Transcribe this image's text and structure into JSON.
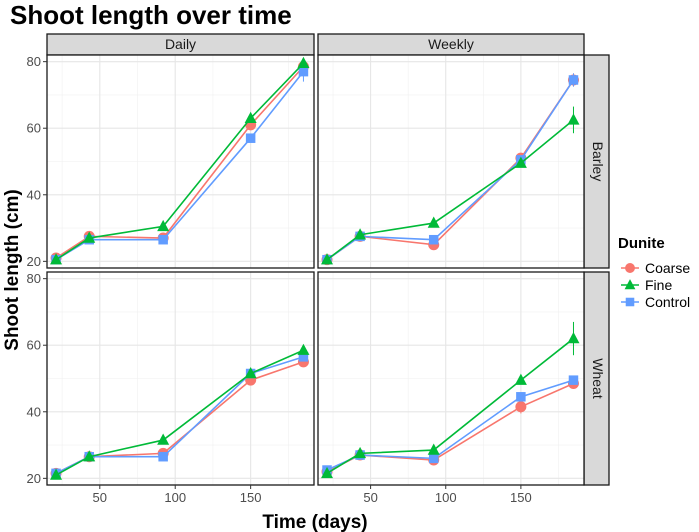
{
  "chart_data": {
    "type": "line",
    "title": "Shoot length over time",
    "xlabel": "Time (days)",
    "ylabel": "Shoot length (cm)",
    "xlim": [
      15,
      192
    ],
    "ylim": [
      18,
      82
    ],
    "x_ticks": [
      50,
      100,
      150
    ],
    "y_ticks": [
      20,
      40,
      60,
      80
    ],
    "x": [
      21,
      43,
      92,
      150,
      185
    ],
    "grid": true,
    "facet_columns": [
      "Daily",
      "Weekly"
    ],
    "facet_rows": [
      "Barley",
      "Wheat"
    ],
    "legend": {
      "title": "Dunite",
      "position": "right",
      "entries": [
        {
          "name": "Coarse",
          "color": "#F8766D",
          "shape": "circle"
        },
        {
          "name": "Fine",
          "color": "#00BA38",
          "shape": "triangle"
        },
        {
          "name": "Control",
          "color": "#619CFF",
          "shape": "square"
        }
      ]
    },
    "panels": [
      {
        "col": "Daily",
        "row": "Barley",
        "series": [
          {
            "name": "Coarse",
            "values": [
              21,
              27.5,
              27,
              61,
              78.5
            ],
            "errors": [
              0.5,
              0.5,
              0.5,
              1,
              1.5
            ]
          },
          {
            "name": "Fine",
            "values": [
              20.5,
              27,
              30.5,
              63,
              79.5
            ],
            "errors": [
              0.5,
              0.5,
              0.5,
              1,
              1
            ]
          },
          {
            "name": "Control",
            "values": [
              20.5,
              26.5,
              26.5,
              57,
              77
            ],
            "errors": [
              0.5,
              0.5,
              0.5,
              0.8,
              3
            ]
          }
        ]
      },
      {
        "col": "Weekly",
        "row": "Barley",
        "series": [
          {
            "name": "Coarse",
            "values": [
              20.5,
              27.5,
              25,
              51,
              74.5
            ],
            "errors": [
              0.5,
              0.5,
              0.5,
              1,
              2
            ]
          },
          {
            "name": "Fine",
            "values": [
              20.5,
              28,
              31.5,
              49.5,
              62.5
            ],
            "errors": [
              0.5,
              0.5,
              0.5,
              1,
              4
            ]
          },
          {
            "name": "Control",
            "values": [
              20.5,
              27.5,
              26.5,
              50.5,
              74.5
            ],
            "errors": [
              0.5,
              0.5,
              0.5,
              1,
              2
            ]
          }
        ]
      },
      {
        "col": "Daily",
        "row": "Wheat",
        "series": [
          {
            "name": "Coarse",
            "values": [
              21.5,
              26.5,
              27.5,
              49.5,
              55
            ],
            "errors": [
              0.5,
              0.5,
              0.5,
              1,
              1
            ]
          },
          {
            "name": "Fine",
            "values": [
              21,
              26.5,
              31.5,
              51.5,
              58.5
            ],
            "errors": [
              0.5,
              0.5,
              0.5,
              1,
              1
            ]
          },
          {
            "name": "Control",
            "values": [
              21.5,
              26.5,
              26.5,
              51.5,
              56.5
            ],
            "errors": [
              0.5,
              0.5,
              0.5,
              1,
              1
            ]
          }
        ]
      },
      {
        "col": "Weekly",
        "row": "Wheat",
        "series": [
          {
            "name": "Coarse",
            "values": [
              22,
              27,
              25.5,
              41.5,
              48.5
            ],
            "errors": [
              0.5,
              0.5,
              0.5,
              2,
              1
            ]
          },
          {
            "name": "Fine",
            "values": [
              21.5,
              27.5,
              28.5,
              49.5,
              62
            ],
            "errors": [
              0.5,
              0.5,
              0.5,
              1,
              5
            ]
          },
          {
            "name": "Control",
            "values": [
              22.5,
              27,
              26,
              44.5,
              49.5
            ],
            "errors": [
              0.5,
              0.5,
              0.5,
              1,
              1
            ]
          }
        ]
      }
    ]
  }
}
